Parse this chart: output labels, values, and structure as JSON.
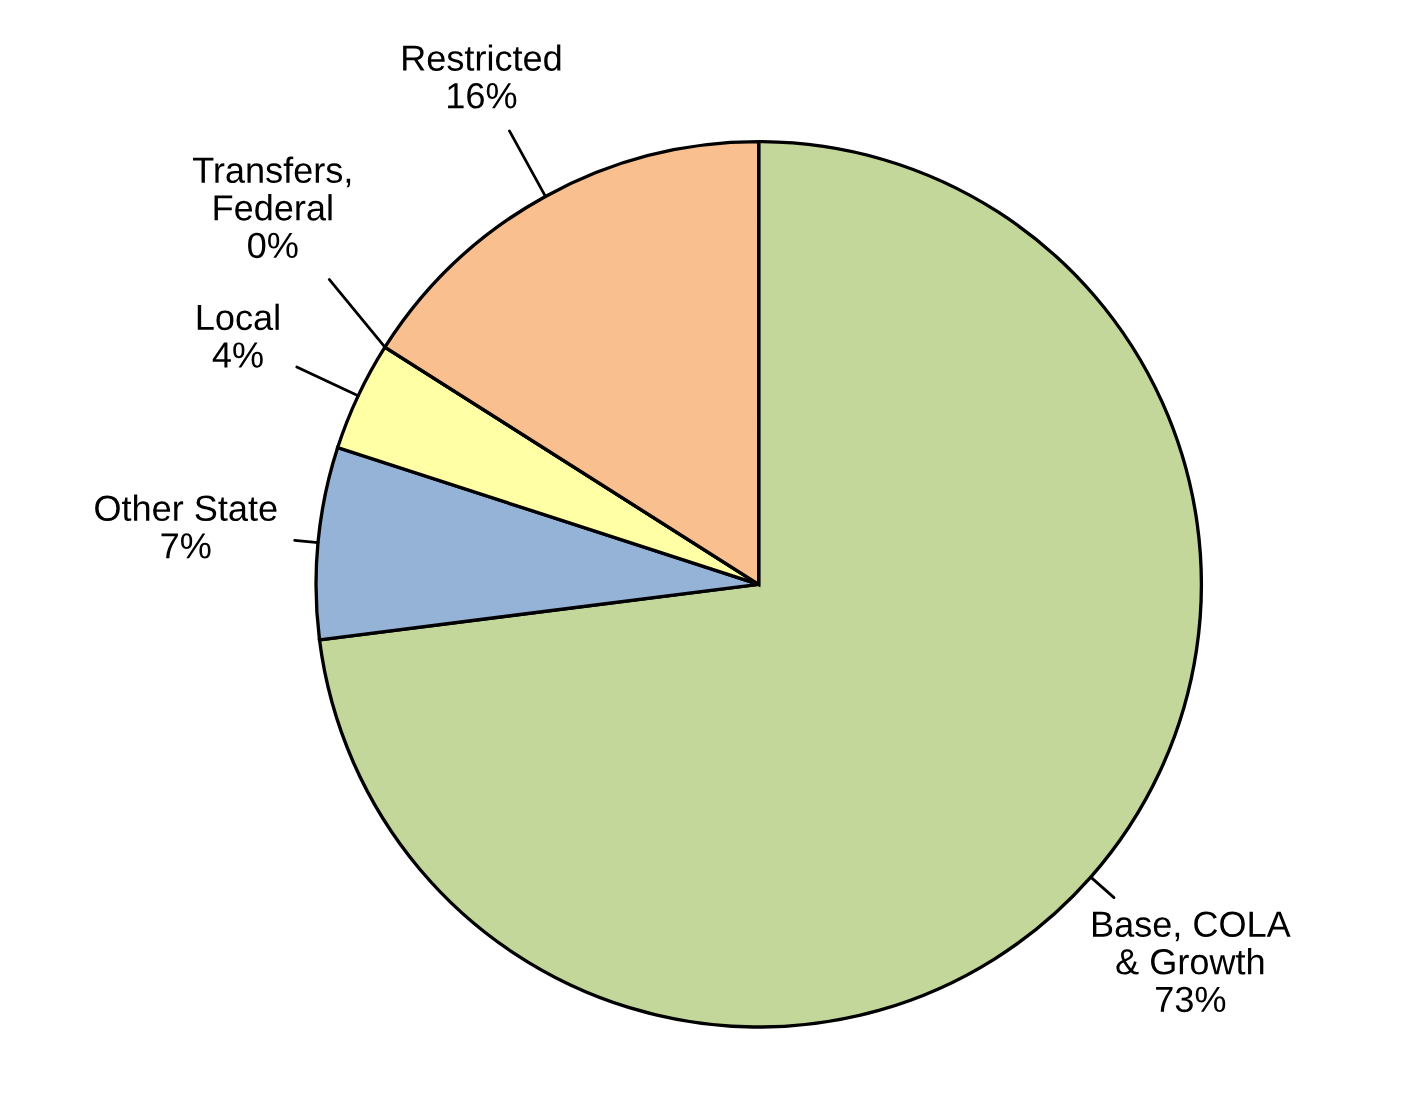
{
  "chart_data": {
    "type": "pie",
    "categories": [
      "Base, COLA\n& Growth",
      "Other State",
      "Local",
      "Transfers,\nFederal",
      "Restricted"
    ],
    "values": [
      73,
      7,
      4,
      0,
      16
    ],
    "value_labels": [
      "73%",
      "7%",
      "4%",
      "0%",
      "16%"
    ],
    "colors": [
      "#c4d79b",
      "#95b3d7",
      "#ffffa6",
      "#8064a2",
      "#fabf8f"
    ]
  }
}
